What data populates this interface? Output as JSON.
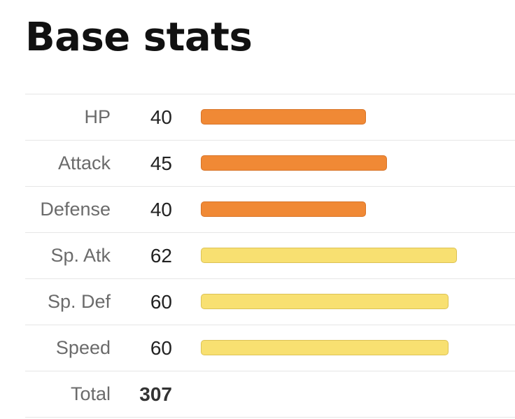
{
  "title": "Base stats",
  "stats": [
    {
      "label": "HP",
      "value": "40",
      "base": 40,
      "bar_color": "#f08935",
      "bar_border": "#d87428"
    },
    {
      "label": "Attack",
      "value": "45",
      "base": 45,
      "bar_color": "#f08935",
      "bar_border": "#d87428"
    },
    {
      "label": "Defense",
      "value": "40",
      "base": 40,
      "bar_color": "#f08935",
      "bar_border": "#d87428"
    },
    {
      "label": "Sp. Atk",
      "value": "62",
      "base": 62,
      "bar_color": "#f8e071",
      "bar_border": "#dcc255"
    },
    {
      "label": "Sp. Def",
      "value": "60",
      "base": 60,
      "bar_color": "#f8e071",
      "bar_border": "#dcc255"
    },
    {
      "label": "Speed",
      "value": "60",
      "base": 60,
      "bar_color": "#f8e071",
      "bar_border": "#dcc255"
    }
  ],
  "total": {
    "label": "Total",
    "value": "307"
  }
}
